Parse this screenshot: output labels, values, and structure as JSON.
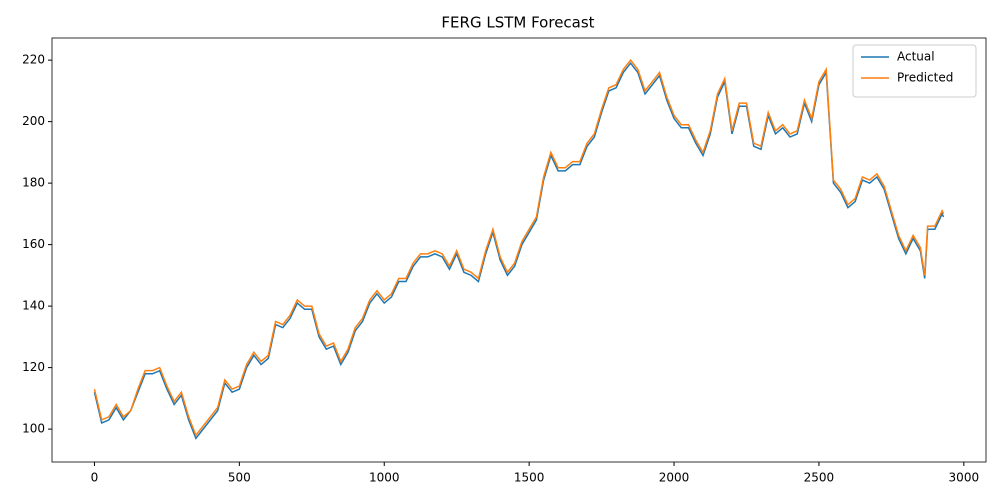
{
  "chart_data": {
    "type": "line",
    "title": "FERG LSTM Forecast",
    "x": [
      0,
      25,
      50,
      75,
      100,
      125,
      150,
      175,
      200,
      225,
      250,
      275,
      300,
      325,
      350,
      375,
      400,
      425,
      450,
      475,
      500,
      525,
      550,
      575,
      600,
      625,
      650,
      675,
      700,
      725,
      750,
      775,
      800,
      825,
      850,
      875,
      900,
      925,
      950,
      975,
      1000,
      1025,
      1050,
      1075,
      1100,
      1125,
      1150,
      1175,
      1200,
      1225,
      1250,
      1275,
      1300,
      1325,
      1350,
      1375,
      1400,
      1425,
      1450,
      1475,
      1500,
      1525,
      1550,
      1575,
      1600,
      1625,
      1650,
      1675,
      1700,
      1725,
      1750,
      1775,
      1800,
      1825,
      1850,
      1875,
      1900,
      1925,
      1950,
      1975,
      2000,
      2025,
      2050,
      2075,
      2100,
      2125,
      2150,
      2175,
      2200,
      2225,
      2250,
      2275,
      2300,
      2325,
      2350,
      2375,
      2400,
      2425,
      2450,
      2475,
      2500,
      2525,
      2550,
      2575,
      2600,
      2625,
      2650,
      2675,
      2700,
      2725,
      2750,
      2775,
      2800,
      2825,
      2850,
      2865,
      2875,
      2900,
      2925,
      2930
    ],
    "series": [
      {
        "name": "Actual",
        "color": "#1f77b4",
        "values": [
          112,
          102,
          103,
          107,
          103,
          106,
          112,
          118,
          118,
          119,
          113,
          108,
          111,
          103,
          97,
          100,
          103,
          106,
          115,
          112,
          113,
          120,
          124,
          121,
          123,
          134,
          133,
          136,
          141,
          139,
          139,
          130,
          126,
          127,
          121,
          125,
          132,
          135,
          141,
          144,
          141,
          143,
          148,
          148,
          153,
          156,
          156,
          157,
          156,
          152,
          157,
          151,
          150,
          148,
          157,
          164,
          155,
          150,
          153,
          160,
          164,
          168,
          181,
          189,
          184,
          184,
          186,
          186,
          192,
          195,
          203,
          210,
          211,
          216,
          219,
          216,
          209,
          212,
          215,
          207,
          201,
          198,
          198,
          193,
          189,
          196,
          208,
          213,
          196,
          205,
          205,
          192,
          191,
          202,
          196,
          198,
          195,
          196,
          206,
          200,
          212,
          216,
          180,
          177,
          172,
          174,
          181,
          180,
          182,
          178,
          170,
          162,
          157,
          162,
          158,
          149,
          165,
          165,
          170,
          169
        ]
      },
      {
        "name": "Predicted",
        "color": "#ff7f0e",
        "values": [
          113,
          103,
          104,
          108,
          104,
          106,
          113,
          119,
          119,
          120,
          114,
          109,
          112,
          104,
          98,
          101,
          104,
          107,
          116,
          113,
          114,
          121,
          125,
          122,
          124,
          135,
          134,
          137,
          142,
          140,
          140,
          131,
          127,
          128,
          122,
          126,
          133,
          136,
          142,
          145,
          142,
          144,
          149,
          149,
          154,
          157,
          157,
          158,
          157,
          153,
          158,
          152,
          151,
          149,
          158,
          165,
          156,
          151,
          154,
          161,
          165,
          169,
          182,
          190,
          185,
          185,
          187,
          187,
          193,
          196,
          204,
          211,
          212,
          217,
          220,
          217,
          210,
          213,
          216,
          208,
          202,
          199,
          199,
          194,
          190,
          197,
          209,
          214,
          197,
          206,
          206,
          193,
          192,
          203,
          197,
          199,
          196,
          197,
          207,
          201,
          213,
          217,
          181,
          178,
          173,
          175,
          182,
          181,
          183,
          179,
          171,
          163,
          158,
          163,
          159,
          150,
          166,
          166,
          171,
          170
        ]
      }
    ],
    "xlim": [
      -146.5,
      3076.5
    ],
    "ylim": [
      89.3,
      227.2
    ],
    "xticks": [
      0,
      500,
      1000,
      1500,
      2000,
      2500,
      3000
    ],
    "yticks": [
      100,
      120,
      140,
      160,
      180,
      200,
      220
    ],
    "legend": "upper right"
  }
}
